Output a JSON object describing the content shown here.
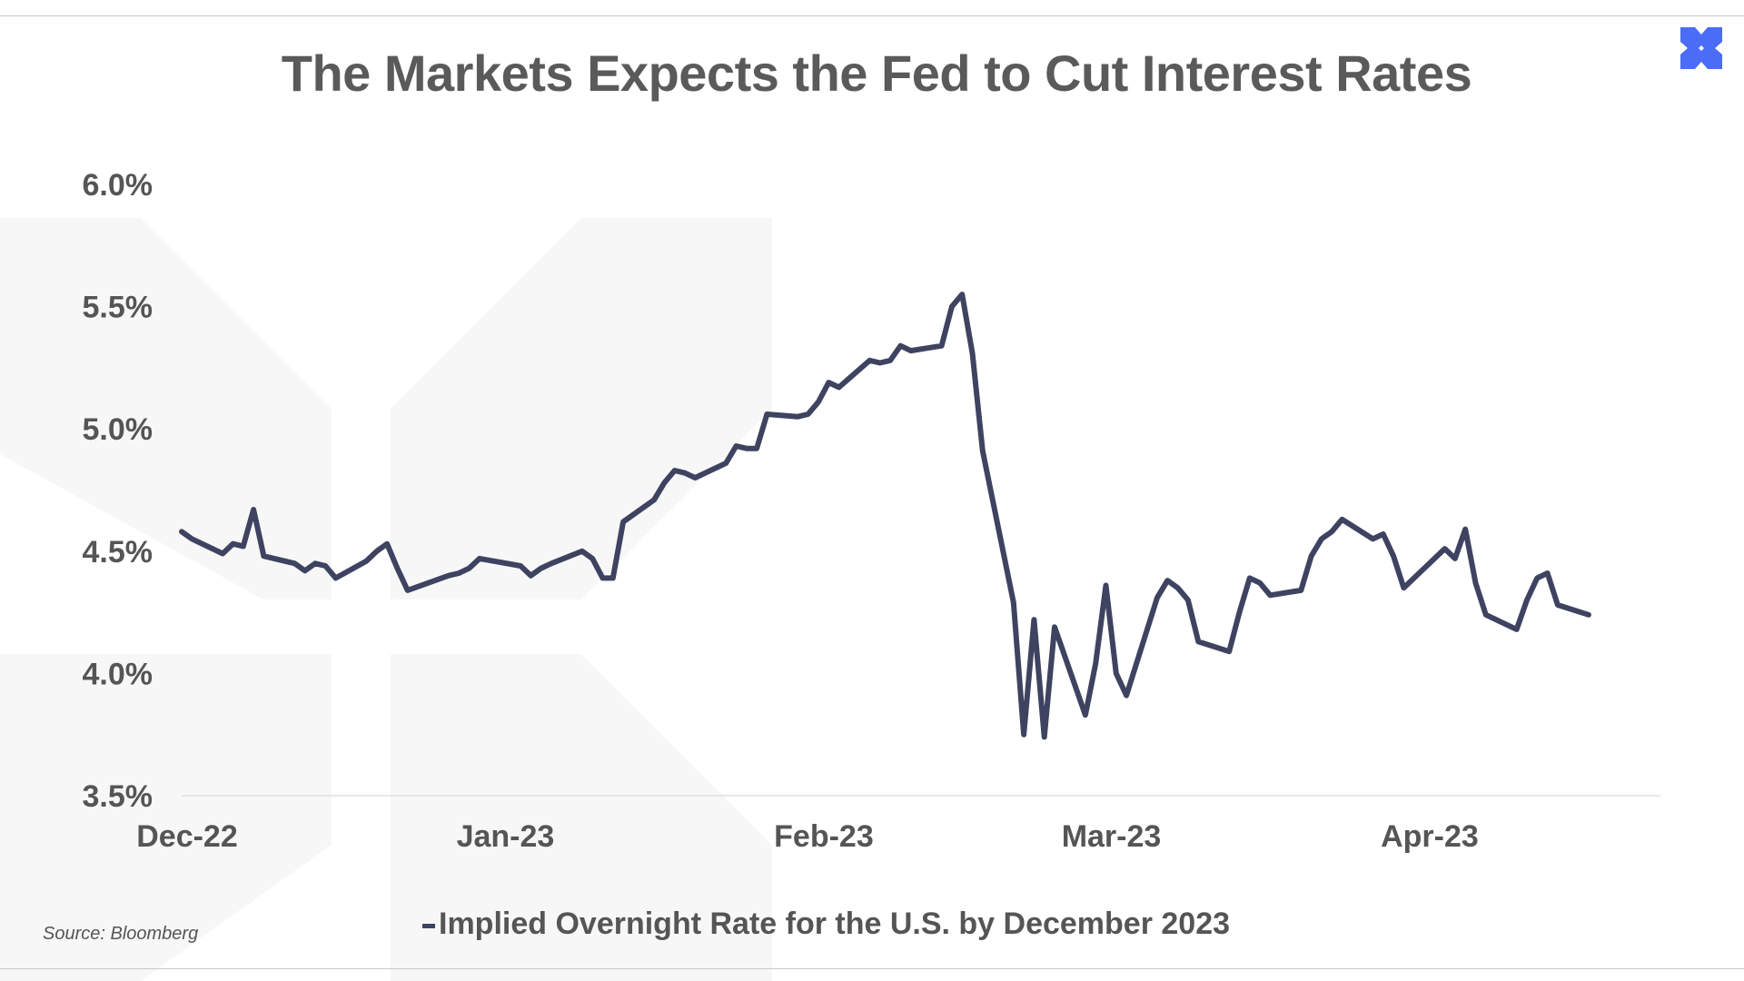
{
  "title": "The Markets Expects the Fed to Cut Interest Rates",
  "source": "Source: Bloomberg",
  "colors": {
    "line": "#3d4360",
    "text": "#555555",
    "title": "#5a5a5a",
    "logo": "#4a6cf7",
    "watermark": "#f7f7f7"
  },
  "logo_icon": "x-cross-logo-icon",
  "chart_data": {
    "type": "line",
    "title": "The Markets Expects the Fed to Cut Interest Rates",
    "xlabel": "",
    "ylabel": "",
    "ylim": [
      3.5,
      6.0
    ],
    "yticks": [
      3.5,
      4.0,
      4.5,
      5.0,
      5.5,
      6.0
    ],
    "ytick_labels": [
      "3.5%",
      "4.0%",
      "4.5%",
      "5.0%",
      "5.5%",
      "6.0%"
    ],
    "xlim": [
      "2022-12-01",
      "2023-04-24"
    ],
    "xticks": [
      {
        "date": "2022-12-01",
        "label": "Dec-22"
      },
      {
        "date": "2023-01-01",
        "label": "Jan-23"
      },
      {
        "date": "2023-02-01",
        "label": "Feb-23"
      },
      {
        "date": "2023-03-01",
        "label": "Mar-23"
      },
      {
        "date": "2023-04-01",
        "label": "Apr-23"
      }
    ],
    "grid": false,
    "legend_position": "bottom-center",
    "series": [
      {
        "name": "Implied Overnight Rate for the U.S. by December 2023",
        "color": "#3d4360",
        "points": [
          [
            "2022-12-01",
            4.58
          ],
          [
            "2022-12-02",
            4.55
          ],
          [
            "2022-12-05",
            4.49
          ],
          [
            "2022-12-06",
            4.53
          ],
          [
            "2022-12-07",
            4.52
          ],
          [
            "2022-12-08",
            4.67
          ],
          [
            "2022-12-09",
            4.48
          ],
          [
            "2022-12-12",
            4.45
          ],
          [
            "2022-12-13",
            4.42
          ],
          [
            "2022-12-14",
            4.45
          ],
          [
            "2022-12-15",
            4.44
          ],
          [
            "2022-12-16",
            4.39
          ],
          [
            "2022-12-19",
            4.46
          ],
          [
            "2022-12-20",
            4.5
          ],
          [
            "2022-12-21",
            4.53
          ],
          [
            "2022-12-22",
            4.43
          ],
          [
            "2022-12-23",
            4.34
          ],
          [
            "2022-12-27",
            4.4
          ],
          [
            "2022-12-28",
            4.41
          ],
          [
            "2022-12-29",
            4.43
          ],
          [
            "2022-12-30",
            4.47
          ],
          [
            "2023-01-03",
            4.44
          ],
          [
            "2023-01-04",
            4.4
          ],
          [
            "2023-01-05",
            4.43
          ],
          [
            "2023-01-06",
            4.45
          ],
          [
            "2023-01-09",
            4.5
          ],
          [
            "2023-01-10",
            4.47
          ],
          [
            "2023-01-11",
            4.39
          ],
          [
            "2023-01-12",
            4.39
          ],
          [
            "2023-01-13",
            4.62
          ],
          [
            "2023-01-16",
            4.71
          ],
          [
            "2023-01-17",
            4.78
          ],
          [
            "2023-01-18",
            4.83
          ],
          [
            "2023-01-19",
            4.82
          ],
          [
            "2023-01-20",
            4.8
          ],
          [
            "2023-01-23",
            4.86
          ],
          [
            "2023-01-24",
            4.93
          ],
          [
            "2023-01-25",
            4.92
          ],
          [
            "2023-01-26",
            4.92
          ],
          [
            "2023-01-27",
            5.06
          ],
          [
            "2023-01-30",
            5.05
          ],
          [
            "2023-01-31",
            5.06
          ],
          [
            "2023-02-01",
            5.11
          ],
          [
            "2023-02-02",
            5.19
          ],
          [
            "2023-02-03",
            5.17
          ],
          [
            "2023-02-06",
            5.28
          ],
          [
            "2023-02-07",
            5.27
          ],
          [
            "2023-02-08",
            5.28
          ],
          [
            "2023-02-09",
            5.34
          ],
          [
            "2023-02-10",
            5.32
          ],
          [
            "2023-02-13",
            5.34
          ],
          [
            "2023-02-14",
            5.5
          ],
          [
            "2023-02-15",
            5.55
          ],
          [
            "2023-02-16",
            5.31
          ],
          [
            "2023-02-17",
            4.91
          ],
          [
            "2023-02-20",
            4.29
          ],
          [
            "2023-02-21",
            3.75
          ],
          [
            "2023-02-22",
            4.22
          ],
          [
            "2023-02-23",
            3.74
          ],
          [
            "2023-02-24",
            4.19
          ],
          [
            "2023-02-27",
            3.83
          ],
          [
            "2023-02-28",
            4.04
          ],
          [
            "2023-03-01",
            4.36
          ],
          [
            "2023-03-02",
            4.0
          ],
          [
            "2023-03-03",
            3.91
          ],
          [
            "2023-03-06",
            4.31
          ],
          [
            "2023-03-07",
            4.38
          ],
          [
            "2023-03-08",
            4.35
          ],
          [
            "2023-03-09",
            4.3
          ],
          [
            "2023-03-10",
            4.13
          ],
          [
            "2023-03-13",
            4.09
          ],
          [
            "2023-03-14",
            4.25
          ],
          [
            "2023-03-15",
            4.39
          ],
          [
            "2023-03-16",
            4.37
          ],
          [
            "2023-03-17",
            4.32
          ],
          [
            "2023-03-20",
            4.34
          ],
          [
            "2023-03-21",
            4.48
          ],
          [
            "2023-03-22",
            4.55
          ],
          [
            "2023-03-23",
            4.58
          ],
          [
            "2023-03-24",
            4.63
          ],
          [
            "2023-03-27",
            4.55
          ],
          [
            "2023-03-28",
            4.57
          ],
          [
            "2023-03-29",
            4.48
          ],
          [
            "2023-03-30",
            4.35
          ],
          [
            "2023-03-31",
            4.39
          ],
          [
            "2023-04-03",
            4.51
          ],
          [
            "2023-04-04",
            4.47
          ],
          [
            "2023-04-05",
            4.59
          ],
          [
            "2023-04-06",
            4.37
          ],
          [
            "2023-04-07",
            4.24
          ],
          [
            "2023-04-10",
            4.18
          ],
          [
            "2023-04-11",
            4.3
          ],
          [
            "2023-04-12",
            4.39
          ],
          [
            "2023-04-13",
            4.41
          ],
          [
            "2023-04-14",
            4.28
          ],
          [
            "2023-04-17",
            4.24
          ]
        ]
      }
    ]
  }
}
